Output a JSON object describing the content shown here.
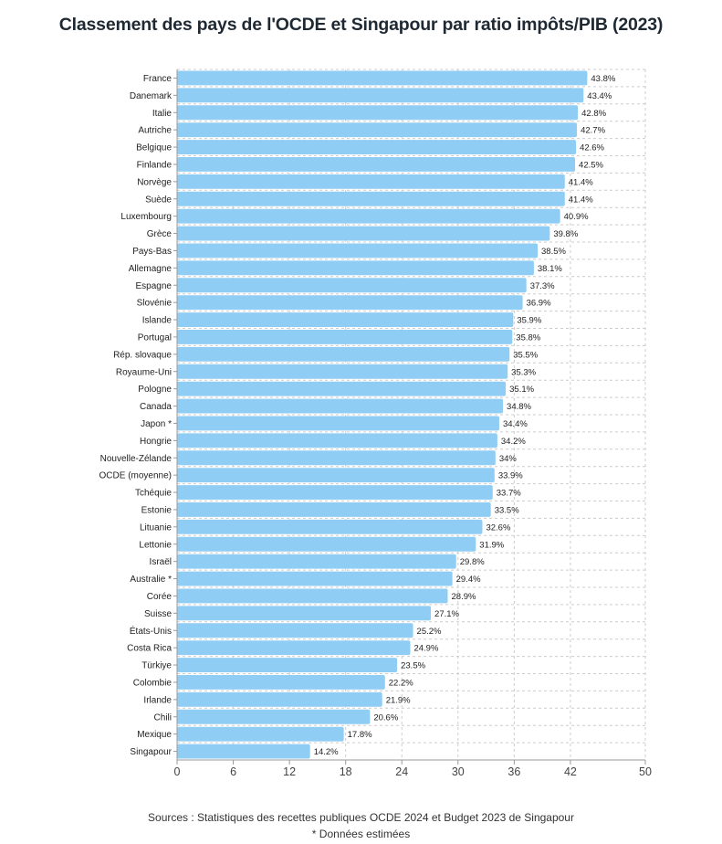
{
  "title": "Classement des pays de l'OCDE et Singapour par ratio impôts/PIB (2023)",
  "footer": {
    "sources": "Sources : Statistiques des recettes publiques OCDE 2024 et Budget 2023 de Singapour",
    "note": "* Données estimées"
  },
  "colors": {
    "bar": "#90CDF4",
    "grid": "#cccccc",
    "axis": "#999999"
  },
  "chart_data": {
    "type": "bar",
    "orientation": "horizontal",
    "categories": [
      "France",
      "Danemark",
      "Italie",
      "Autriche",
      "Belgique",
      "Finlande",
      "Norvège",
      "Suède",
      "Luxembourg",
      "Grèce",
      "Pays-Bas",
      "Allemagne",
      "Espagne",
      "Slovénie",
      "Islande",
      "Portugal",
      "Rép. slovaque",
      "Royaume-Uni",
      "Pologne",
      "Canada",
      "Japon *",
      "Hongrie",
      "Nouvelle-Zélande",
      "OCDE (moyenne)",
      "Tchéquie",
      "Estonie",
      "Lituanie",
      "Lettonie",
      "Israël",
      "Australie *",
      "Corée",
      "Suisse",
      "États-Unis",
      "Costa Rica",
      "Türkiye",
      "Colombie",
      "Irlande",
      "Chili",
      "Mexique",
      "Singapour"
    ],
    "values": [
      43.8,
      43.4,
      42.8,
      42.7,
      42.6,
      42.5,
      41.4,
      41.4,
      40.9,
      39.8,
      38.5,
      38.1,
      37.3,
      36.9,
      35.9,
      35.8,
      35.5,
      35.3,
      35.1,
      34.8,
      34.4,
      34.2,
      34,
      33.9,
      33.7,
      33.5,
      32.6,
      31.9,
      29.8,
      29.4,
      28.9,
      27.1,
      25.2,
      24.9,
      23.5,
      22.2,
      21.9,
      20.6,
      17.8,
      14.2
    ],
    "value_labels": [
      "43.8%",
      "43.4%",
      "42.8%",
      "42.7%",
      "42.6%",
      "42.5%",
      "41.4%",
      "41.4%",
      "40.9%",
      "39.8%",
      "38.5%",
      "38.1%",
      "37.3%",
      "36.9%",
      "35.9%",
      "35.8%",
      "35.5%",
      "35.3%",
      "35.1%",
      "34.8%",
      "34.4%",
      "34.2%",
      "34%",
      "33.9%",
      "33.7%",
      "33.5%",
      "32.6%",
      "31.9%",
      "29.8%",
      "29.4%",
      "28.9%",
      "27.1%",
      "25.2%",
      "24.9%",
      "23.5%",
      "22.2%",
      "21.9%",
      "20.6%",
      "17.8%",
      "14.2%"
    ],
    "xticks": [
      0,
      6,
      12,
      18,
      24,
      30,
      36,
      42,
      50
    ],
    "xlim": [
      0,
      50
    ],
    "grid": true,
    "xlabel": "",
    "ylabel": ""
  }
}
